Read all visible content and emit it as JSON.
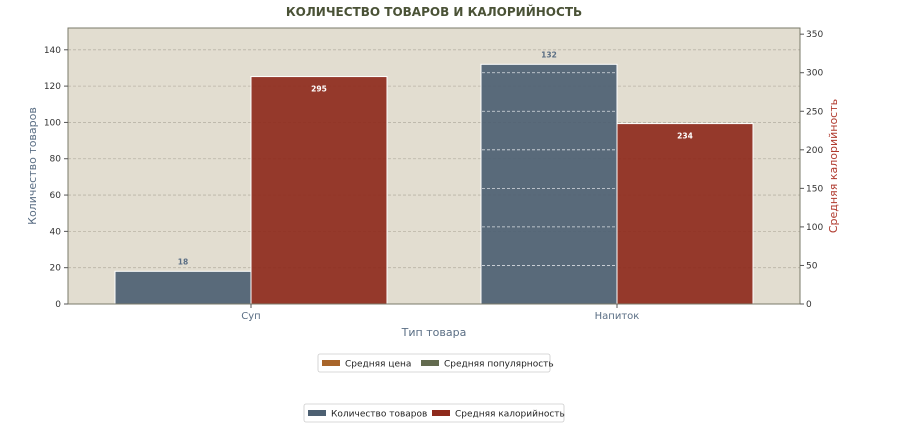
{
  "chart_data": {
    "type": "bar",
    "title": "КОЛИЧЕСТВО ТОВАРОВ И КАЛОРИЙНОСТЬ",
    "xlabel": "Тип товара",
    "ylabel_left": "Количество товаров",
    "ylabel_right": "Средняя калорийность",
    "categories": [
      "Суп",
      "Напиток"
    ],
    "ylim_left": [
      0,
      152
    ],
    "yticks_left": [
      0,
      20,
      40,
      60,
      80,
      100,
      120,
      140
    ],
    "ylim_right": [
      0,
      358
    ],
    "yticks_right": [
      0,
      50,
      100,
      150,
      200,
      250,
      300,
      350
    ],
    "grid": true,
    "series": [
      {
        "name": "Количество товаров",
        "axis": "left",
        "values": [
          18,
          132
        ],
        "labels": [
          "18",
          "132"
        ],
        "color": "#4d6072"
      },
      {
        "name": "Средняя калорийность",
        "axis": "right",
        "values": [
          295,
          234
        ],
        "labels": [
          "295",
          "234"
        ],
        "color": "#8e2a1c"
      }
    ],
    "legends": [
      {
        "entries": [
          {
            "label": "Средняя цена",
            "color": "#a8652a"
          },
          {
            "label": "Средняя популярность",
            "color": "#636b4f"
          }
        ]
      },
      {
        "entries": [
          {
            "label": "Количество товаров",
            "color": "#4d6072"
          },
          {
            "label": "Средняя калорийность",
            "color": "#8e2a1c"
          }
        ]
      }
    ],
    "colors": {
      "plot_bg": "#e2ddd0",
      "left_axis": "#5a6e84",
      "right_axis": "#b03a2e",
      "title": "#4a5236"
    }
  }
}
